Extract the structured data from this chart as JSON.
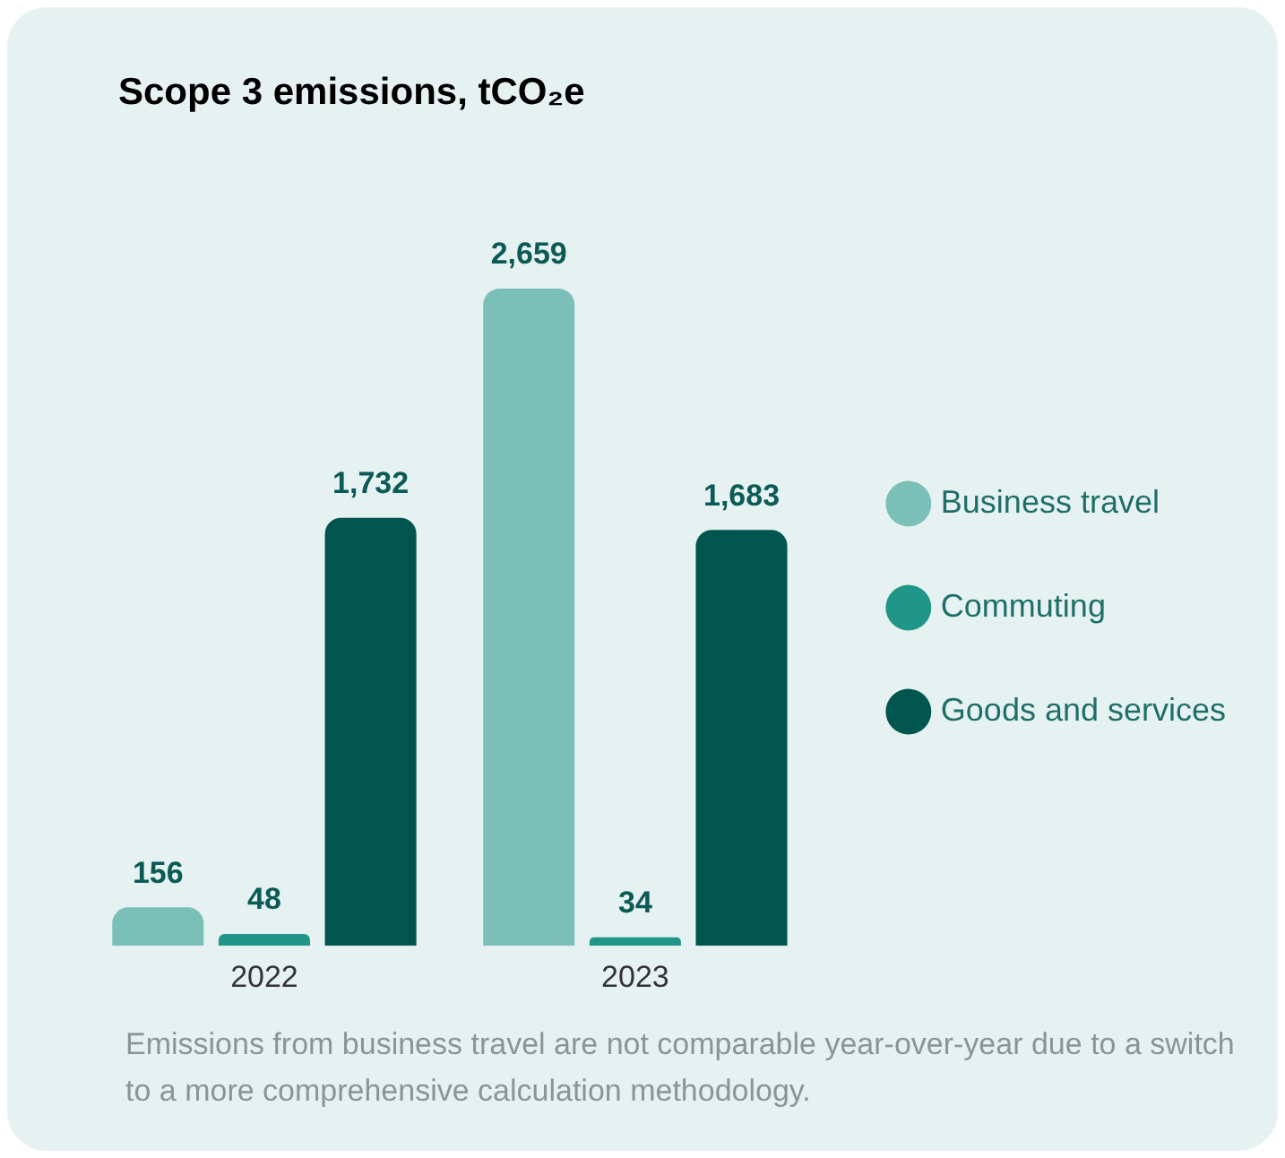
{
  "chart_data": {
    "type": "bar",
    "title": "Scope 3 emissions, tCO₂e",
    "categories": [
      "2022",
      "2023"
    ],
    "series": [
      {
        "name": "Business travel",
        "color": "#7bc0b8",
        "values": [
          156,
          2659
        ],
        "value_labels": [
          "156",
          "2,659"
        ]
      },
      {
        "name": "Commuting",
        "color": "#1f9688",
        "values": [
          48,
          34
        ],
        "value_labels": [
          "48",
          "34"
        ]
      },
      {
        "name": "Goods and services",
        "color": "#00564f",
        "values": [
          1732,
          1683
        ],
        "value_labels": [
          "1,732",
          "1,683"
        ]
      }
    ],
    "grid": false,
    "legend": "right",
    "tick_labels": "x",
    "annotations": [
      "Emissions from business travel are not comparable year-over-year due to a switch to a more comprehensive calculation methodology."
    ]
  }
}
